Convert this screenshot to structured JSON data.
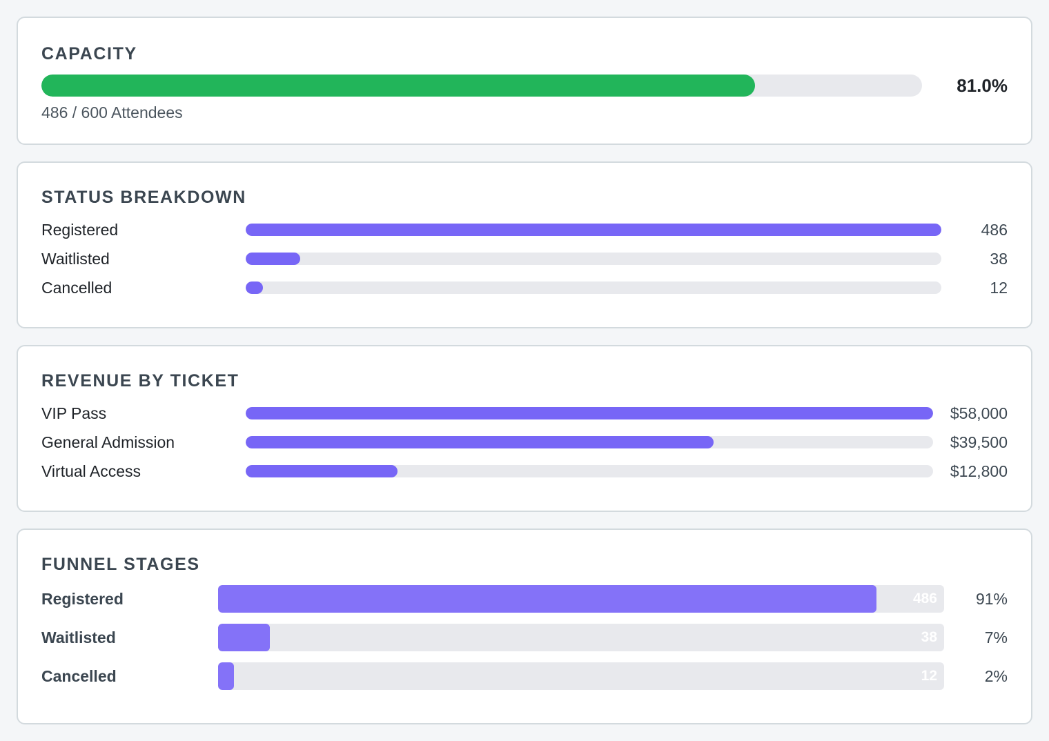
{
  "capacity": {
    "title": "CAPACITY",
    "percent_label": "81.0%",
    "fill_fraction": 0.81,
    "subtitle": "486 / 600 Attendees"
  },
  "status_breakdown": {
    "title": "STATUS BREAKDOWN",
    "items": [
      {
        "label": "Registered",
        "value": "486",
        "fraction": 1.0
      },
      {
        "label": "Waitlisted",
        "value": "38",
        "fraction": 0.078
      },
      {
        "label": "Cancelled",
        "value": "12",
        "fraction": 0.025
      }
    ]
  },
  "revenue_by_ticket": {
    "title": "REVENUE BY TICKET",
    "items": [
      {
        "label": "VIP Pass",
        "value": "$58,000",
        "fraction": 1.0
      },
      {
        "label": "General Admission",
        "value": "$39,500",
        "fraction": 0.681
      },
      {
        "label": "Virtual Access",
        "value": "$12,800",
        "fraction": 0.221
      }
    ]
  },
  "funnel_stages": {
    "title": "FUNNEL STAGES",
    "items": [
      {
        "label": "Registered",
        "count": "486",
        "percent": "91%",
        "fraction": 0.907
      },
      {
        "label": "Waitlisted",
        "count": "38",
        "percent": "7%",
        "fraction": 0.071
      },
      {
        "label": "Cancelled",
        "count": "12",
        "percent": "2%",
        "fraction": 0.022
      }
    ]
  },
  "colors": {
    "capacity_fill": "#22b55a",
    "bar_fill": "#7766f6",
    "funnel_fill": "#8472f8",
    "track": "#e8e9ed"
  }
}
